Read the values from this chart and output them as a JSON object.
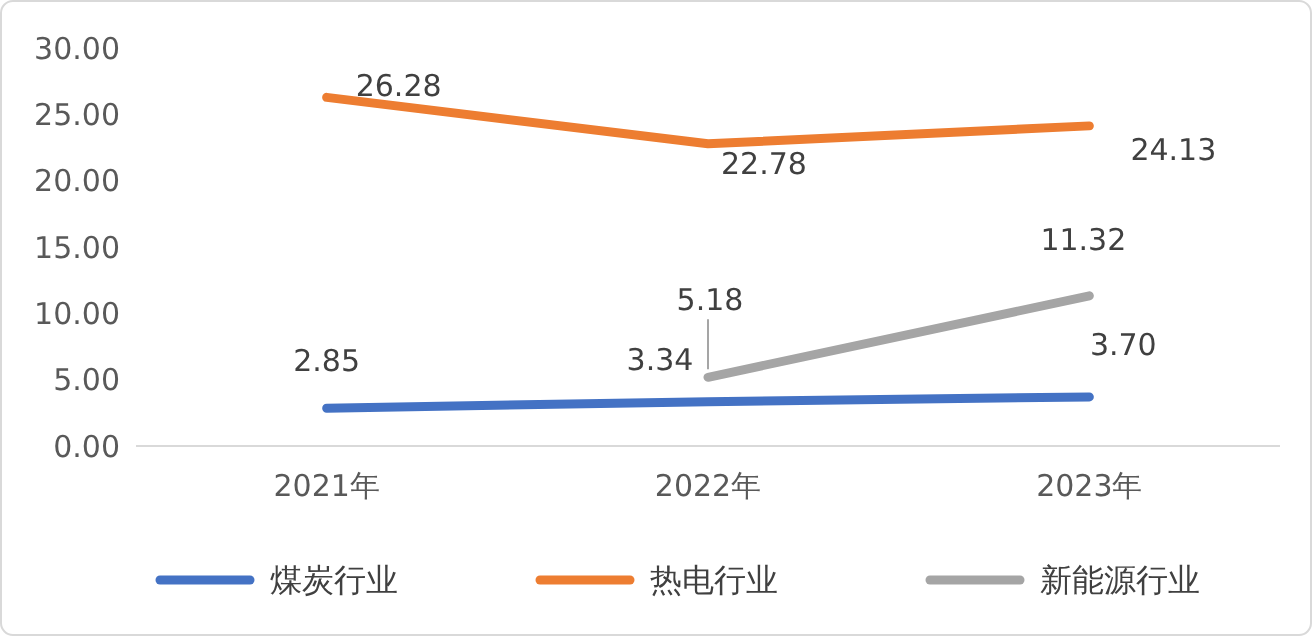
{
  "chart_data": {
    "type": "line",
    "categories": [
      "2021年",
      "2022年",
      "2023年"
    ],
    "series": [
      {
        "name": "煤炭行业",
        "color": "#4472c4",
        "values": [
          2.85,
          3.34,
          3.7
        ],
        "value_labels": [
          "2.85",
          "3.34",
          "3.70"
        ]
      },
      {
        "name": "热电行业",
        "color": "#ed7d31",
        "values": [
          26.28,
          22.78,
          24.13
        ],
        "value_labels": [
          "26.28",
          "22.78",
          "24.13"
        ]
      },
      {
        "name": "新能源行业",
        "color": "#a5a5a5",
        "values": [
          null,
          5.18,
          11.32
        ],
        "value_labels": [
          null,
          "5.18",
          "11.32"
        ]
      }
    ],
    "ylim": [
      0,
      30
    ],
    "yticks": [
      {
        "value": 0,
        "label": "0.00"
      },
      {
        "value": 5,
        "label": "5.00"
      },
      {
        "value": 10,
        "label": "10.00"
      },
      {
        "value": 15,
        "label": "15.00"
      },
      {
        "value": 20,
        "label": "20.00"
      },
      {
        "value": 25,
        "label": "25.00"
      },
      {
        "value": 30,
        "label": "30.00"
      }
    ],
    "grid": false,
    "legend": "bottom",
    "marker": "none",
    "line_style": "solid"
  }
}
